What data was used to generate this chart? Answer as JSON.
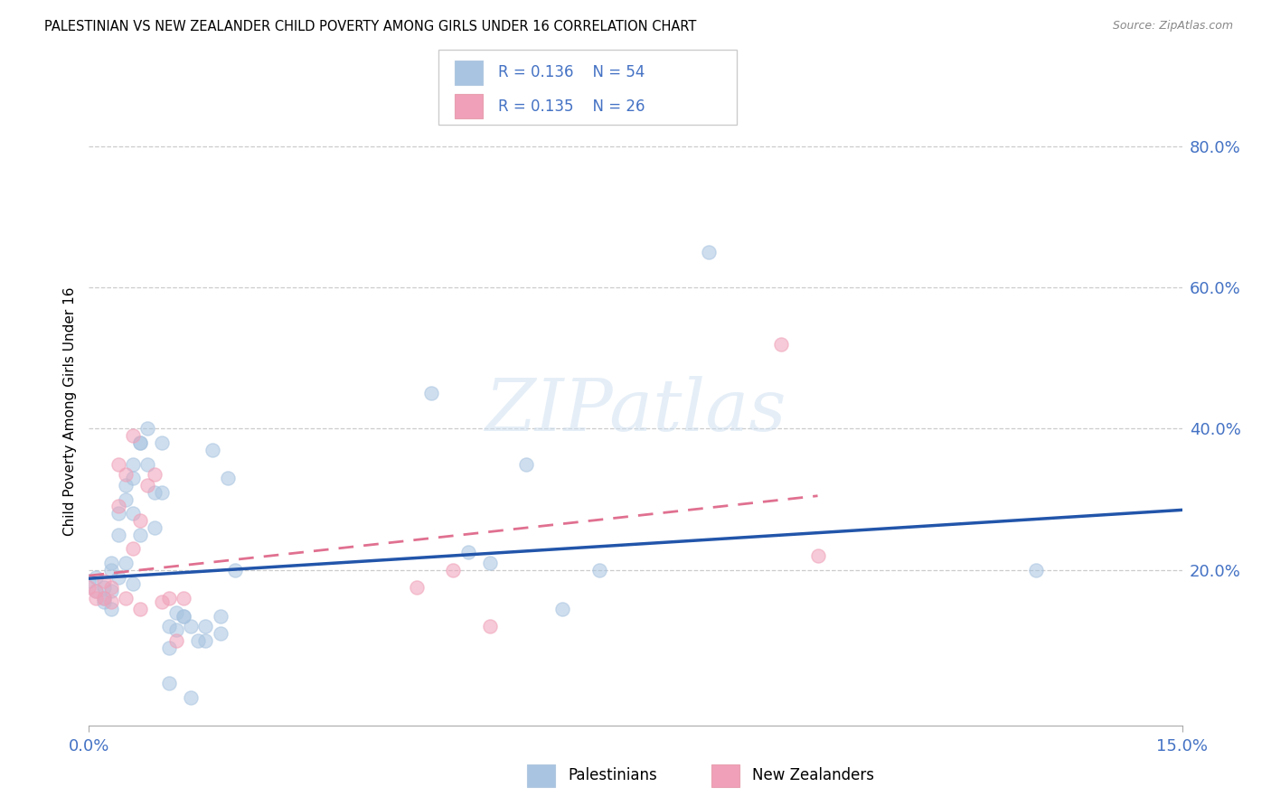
{
  "title": "PALESTINIAN VS NEW ZEALANDER CHILD POVERTY AMONG GIRLS UNDER 16 CORRELATION CHART",
  "source": "Source: ZipAtlas.com",
  "ylabel_label": "Child Poverty Among Girls Under 16",
  "xlim": [
    0,
    0.15
  ],
  "ylim": [
    -0.02,
    0.87
  ],
  "watermark": "ZIPatlas",
  "legend_blue_r": "R = 0.136",
  "legend_blue_n": "N = 54",
  "legend_pink_r": "R = 0.135",
  "legend_pink_n": "N = 26",
  "legend_blue_label": "Palestinians",
  "legend_pink_label": "New Zealanders",
  "blue_color": "#a8c4e0",
  "pink_color": "#f0a0b8",
  "blue_line_color": "#2255aa",
  "pink_line_color": "#e07090",
  "blue_text_color": "#4472c4",
  "pink_text_color": "#e07090",
  "blue_x": [
    0.0,
    0.001,
    0.001,
    0.002,
    0.002,
    0.002,
    0.003,
    0.003,
    0.003,
    0.003,
    0.004,
    0.004,
    0.004,
    0.005,
    0.005,
    0.005,
    0.006,
    0.006,
    0.006,
    0.006,
    0.007,
    0.007,
    0.007,
    0.008,
    0.008,
    0.009,
    0.009,
    0.01,
    0.01,
    0.011,
    0.011,
    0.011,
    0.012,
    0.012,
    0.013,
    0.013,
    0.014,
    0.014,
    0.015,
    0.016,
    0.016,
    0.017,
    0.018,
    0.018,
    0.019,
    0.02,
    0.047,
    0.052,
    0.055,
    0.06,
    0.065,
    0.07,
    0.085,
    0.13
  ],
  "blue_y": [
    0.185,
    0.19,
    0.17,
    0.16,
    0.175,
    0.155,
    0.2,
    0.21,
    0.17,
    0.145,
    0.28,
    0.25,
    0.19,
    0.3,
    0.32,
    0.21,
    0.33,
    0.35,
    0.28,
    0.18,
    0.38,
    0.38,
    0.25,
    0.4,
    0.35,
    0.31,
    0.26,
    0.38,
    0.31,
    0.12,
    0.09,
    0.04,
    0.14,
    0.115,
    0.135,
    0.135,
    0.02,
    0.12,
    0.1,
    0.12,
    0.1,
    0.37,
    0.135,
    0.11,
    0.33,
    0.2,
    0.45,
    0.225,
    0.21,
    0.35,
    0.145,
    0.2,
    0.65,
    0.2
  ],
  "pink_x": [
    0.0,
    0.001,
    0.001,
    0.002,
    0.002,
    0.003,
    0.003,
    0.004,
    0.004,
    0.005,
    0.005,
    0.006,
    0.006,
    0.007,
    0.007,
    0.008,
    0.009,
    0.01,
    0.011,
    0.012,
    0.013,
    0.045,
    0.05,
    0.055,
    0.095,
    0.1
  ],
  "pink_y": [
    0.175,
    0.17,
    0.16,
    0.185,
    0.16,
    0.175,
    0.155,
    0.35,
    0.29,
    0.335,
    0.16,
    0.39,
    0.23,
    0.145,
    0.27,
    0.32,
    0.335,
    0.155,
    0.16,
    0.1,
    0.16,
    0.175,
    0.2,
    0.12,
    0.52,
    0.22
  ],
  "blue_trendline": [
    [
      0.0,
      0.15
    ],
    [
      0.188,
      0.285
    ]
  ],
  "pink_trendline": [
    [
      0.0,
      0.1
    ],
    [
      0.192,
      0.305
    ]
  ],
  "ytick_vals": [
    0.2,
    0.4,
    0.6,
    0.8
  ],
  "ytick_labels": [
    "20.0%",
    "40.0%",
    "60.0%",
    "80.0%"
  ],
  "xtick_vals": [
    0.0,
    0.15
  ],
  "xtick_labels": [
    "0.0%",
    "15.0%"
  ],
  "dot_size": 120
}
